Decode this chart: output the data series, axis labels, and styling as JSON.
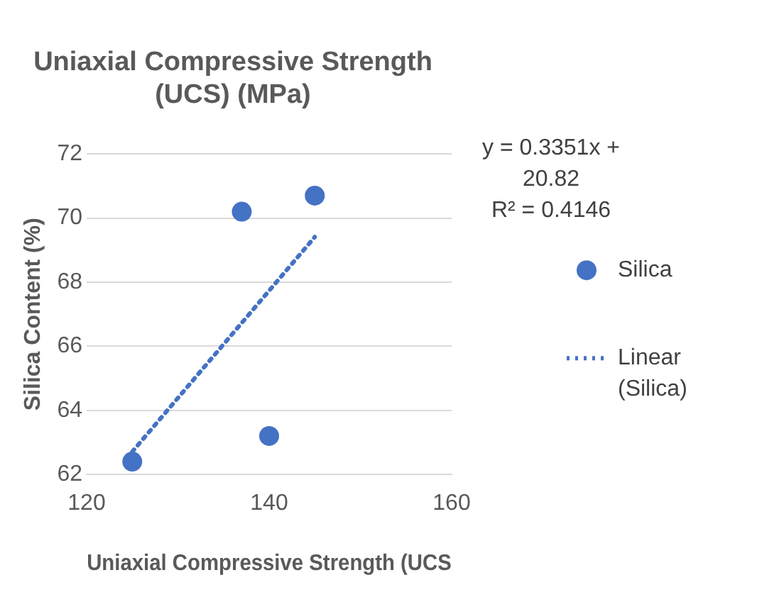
{
  "chart_data": {
    "type": "scatter",
    "title": "Uniaxial Compressive Strength (UCS) (MPa)",
    "xlabel": "Uniaxial Compressive Strength (UCS",
    "ylabel": "Silica Content (%)",
    "annotations": [
      "y = 0.3351x + 20.82",
      "R² = 0.4146"
    ],
    "series": [
      {
        "name": "Silica",
        "color": "#4472c4",
        "x": [
          125,
          137,
          140,
          145
        ],
        "values": [
          62.4,
          70.2,
          63.2,
          70.7
        ],
        "marker": "circle"
      },
      {
        "name": "Linear (Silica)",
        "type": "line",
        "color": "#4472c4",
        "x": [
          125,
          145
        ],
        "values": [
          62.71,
          69.41
        ],
        "marker": "none",
        "line_style": "dotted"
      }
    ],
    "xlim": [
      120,
      160
    ],
    "xticks": [
      120,
      140,
      160
    ],
    "ylim": [
      62,
      72
    ],
    "yticks": [
      62,
      64,
      66,
      68,
      70,
      72
    ],
    "grid": "y",
    "legend": "right"
  }
}
